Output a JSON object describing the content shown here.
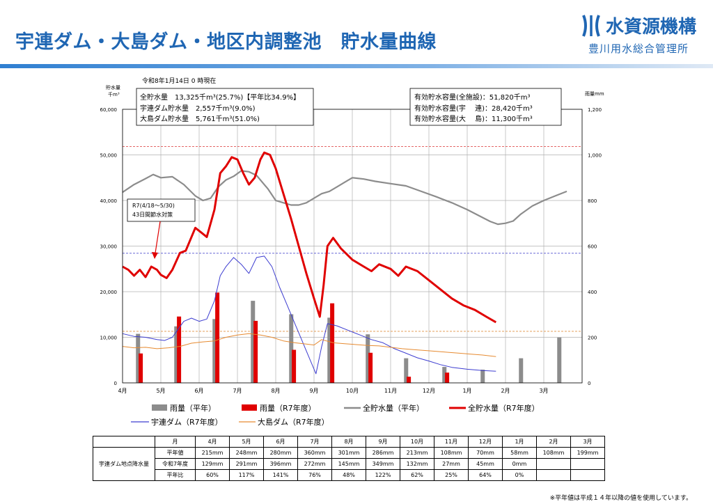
{
  "header": {
    "title": "宇連ダム・大島ダム・地区内調整池　貯水量曲線",
    "org_name": "水資源機構",
    "org_sub": "豊川用水総合管理所"
  },
  "chart_data": {
    "type": "line",
    "date_label": "令和8年1月14日 0 時現在",
    "ylabel_left": "貯水量",
    "ylabel_left_unit": "千m³",
    "ylabel_right": "雨量mm",
    "ylim_left": [
      0,
      60000
    ],
    "ylim_right": [
      0,
      1200
    ],
    "yticks_left": [
      "0",
      "10,000",
      "20,000",
      "30,000",
      "40,000",
      "50,000",
      "60,000"
    ],
    "yticks_right": [
      "0",
      "200",
      "400",
      "600",
      "800",
      "1,000",
      "1,200"
    ],
    "months": [
      "4月",
      "5月",
      "6月",
      "7月",
      "8月",
      "9月",
      "10月",
      "11月",
      "12月",
      "1月",
      "2月",
      "3月"
    ],
    "info_left": [
      "全貯水量　13,325千m³(25.7%)【平年比34.9%】",
      "宇連ダム貯水量　2,557千m³(9.0%)",
      "大島ダム貯水量　5,761千m³(51.0%)"
    ],
    "info_right": [
      "有効貯水容量(全施設)：51,820千m³",
      "有効貯水容量(宇　 連)：28,420千m³",
      "有効貯水容量(大　 島)：11,300千m³"
    ],
    "annotation": [
      "R7(4/18～5/30)",
      "43日間節水対策"
    ],
    "reference_lines": [
      {
        "value": 51820,
        "color": "#e05050"
      },
      {
        "value": 28420,
        "color": "#5050d0"
      },
      {
        "value": 11300,
        "color": "#e09040"
      }
    ],
    "rain_normal": [
      215,
      248,
      280,
      360,
      301,
      286,
      213,
      108,
      70,
      58,
      108,
      199
    ],
    "rain_r7": [
      129,
      291,
      396,
      272,
      145,
      349,
      132,
      27,
      45,
      0
    ],
    "series": [
      {
        "name": "全貯水量(平年)",
        "color": "#8c8c8c",
        "points": [
          [
            0,
            41800
          ],
          [
            0.3,
            43500
          ],
          [
            0.6,
            44800
          ],
          [
            0.8,
            45700
          ],
          [
            1.0,
            45000
          ],
          [
            1.3,
            45200
          ],
          [
            1.6,
            43500
          ],
          [
            1.9,
            41000
          ],
          [
            2.1,
            40000
          ],
          [
            2.3,
            40500
          ],
          [
            2.5,
            43000
          ],
          [
            2.7,
            44500
          ],
          [
            2.9,
            45300
          ],
          [
            3.1,
            46500
          ],
          [
            3.3,
            46300
          ],
          [
            3.5,
            45500
          ],
          [
            3.8,
            42500
          ],
          [
            4.0,
            40000
          ],
          [
            4.2,
            39500
          ],
          [
            4.4,
            39000
          ],
          [
            4.6,
            39000
          ],
          [
            4.8,
            39500
          ],
          [
            5.0,
            40500
          ],
          [
            5.2,
            41500
          ],
          [
            5.4,
            42000
          ],
          [
            5.6,
            43000
          ],
          [
            5.8,
            44000
          ],
          [
            6.0,
            45000
          ],
          [
            6.3,
            44700
          ],
          [
            6.6,
            44200
          ],
          [
            7.0,
            43700
          ],
          [
            7.4,
            43200
          ],
          [
            7.8,
            42000
          ],
          [
            8.2,
            40800
          ],
          [
            8.6,
            39500
          ],
          [
            9.0,
            38000
          ],
          [
            9.3,
            36700
          ],
          [
            9.6,
            35400
          ],
          [
            9.8,
            34800
          ],
          [
            10.0,
            35000
          ],
          [
            10.2,
            35500
          ],
          [
            10.4,
            37000
          ],
          [
            10.7,
            38800
          ],
          [
            11.0,
            40000
          ],
          [
            11.3,
            41000
          ],
          [
            11.6,
            42000
          ]
        ]
      },
      {
        "name": "全貯水量(R7年度)",
        "color": "#e00000",
        "points": [
          [
            0,
            25500
          ],
          [
            0.15,
            24800
          ],
          [
            0.3,
            23500
          ],
          [
            0.45,
            24800
          ],
          [
            0.6,
            23200
          ],
          [
            0.75,
            25500
          ],
          [
            0.9,
            24800
          ],
          [
            1.0,
            23700
          ],
          [
            1.15,
            23000
          ],
          [
            1.3,
            24800
          ],
          [
            1.5,
            28500
          ],
          [
            1.65,
            29000
          ],
          [
            1.75,
            31000
          ],
          [
            1.9,
            34000
          ],
          [
            2.05,
            33000
          ],
          [
            2.2,
            32000
          ],
          [
            2.4,
            38000
          ],
          [
            2.55,
            46000
          ],
          [
            2.7,
            47500
          ],
          [
            2.85,
            49500
          ],
          [
            3.0,
            49000
          ],
          [
            3.15,
            46000
          ],
          [
            3.3,
            43500
          ],
          [
            3.45,
            45000
          ],
          [
            3.6,
            49000
          ],
          [
            3.7,
            50500
          ],
          [
            3.85,
            50000
          ],
          [
            4.0,
            47000
          ],
          [
            4.2,
            41500
          ],
          [
            4.4,
            36000
          ],
          [
            4.6,
            30000
          ],
          [
            4.8,
            24000
          ],
          [
            5.0,
            18500
          ],
          [
            5.15,
            14500
          ],
          [
            5.25,
            21500
          ],
          [
            5.35,
            30000
          ],
          [
            5.5,
            31800
          ],
          [
            5.7,
            29500
          ],
          [
            6.0,
            27000
          ],
          [
            6.3,
            25500
          ],
          [
            6.5,
            24500
          ],
          [
            6.7,
            26000
          ],
          [
            7.0,
            25000
          ],
          [
            7.2,
            23500
          ],
          [
            7.4,
            25500
          ],
          [
            7.7,
            24500
          ],
          [
            8.0,
            22500
          ],
          [
            8.3,
            20500
          ],
          [
            8.6,
            18500
          ],
          [
            8.9,
            17000
          ],
          [
            9.2,
            16000
          ],
          [
            9.5,
            14500
          ],
          [
            9.75,
            13300
          ]
        ]
      },
      {
        "name": "宇連ダム(R7年度)",
        "color": "#3c3cd0",
        "points": [
          [
            0,
            10800
          ],
          [
            0.3,
            10200
          ],
          [
            0.6,
            10000
          ],
          [
            0.9,
            9500
          ],
          [
            1.1,
            9300
          ],
          [
            1.3,
            10000
          ],
          [
            1.6,
            13500
          ],
          [
            1.8,
            14200
          ],
          [
            2.0,
            13500
          ],
          [
            2.2,
            14000
          ],
          [
            2.4,
            18000
          ],
          [
            2.55,
            23500
          ],
          [
            2.7,
            25500
          ],
          [
            2.9,
            27500
          ],
          [
            3.1,
            26000
          ],
          [
            3.3,
            24000
          ],
          [
            3.5,
            27500
          ],
          [
            3.7,
            27800
          ],
          [
            3.9,
            25500
          ],
          [
            4.1,
            21000
          ],
          [
            4.3,
            17000
          ],
          [
            4.5,
            13000
          ],
          [
            4.7,
            9000
          ],
          [
            4.9,
            5000
          ],
          [
            5.05,
            2000
          ],
          [
            5.2,
            8000
          ],
          [
            5.35,
            13000
          ],
          [
            5.6,
            12500
          ],
          [
            5.9,
            11500
          ],
          [
            6.2,
            10500
          ],
          [
            6.5,
            9500
          ],
          [
            6.8,
            8800
          ],
          [
            7.1,
            7500
          ],
          [
            7.4,
            6500
          ],
          [
            7.7,
            5500
          ],
          [
            8.0,
            4800
          ],
          [
            8.3,
            4000
          ],
          [
            8.6,
            3400
          ],
          [
            9.0,
            3000
          ],
          [
            9.4,
            2700
          ],
          [
            9.75,
            2557
          ]
        ]
      },
      {
        "name": "大島ダム(R7年度)",
        "color": "#e68a30",
        "points": [
          [
            0,
            8000
          ],
          [
            0.3,
            7700
          ],
          [
            0.6,
            7800
          ],
          [
            0.9,
            7500
          ],
          [
            1.2,
            7700
          ],
          [
            1.5,
            8000
          ],
          [
            1.8,
            8700
          ],
          [
            2.1,
            9000
          ],
          [
            2.4,
            9200
          ],
          [
            2.7,
            10000
          ],
          [
            3.0,
            10500
          ],
          [
            3.3,
            10800
          ],
          [
            3.6,
            10500
          ],
          [
            3.9,
            10000
          ],
          [
            4.2,
            9200
          ],
          [
            4.5,
            8800
          ],
          [
            4.8,
            8500
          ],
          [
            5.0,
            8300
          ],
          [
            5.2,
            9500
          ],
          [
            5.5,
            8800
          ],
          [
            5.8,
            8600
          ],
          [
            6.1,
            8400
          ],
          [
            6.4,
            8200
          ],
          [
            6.7,
            8100
          ],
          [
            7.0,
            7800
          ],
          [
            7.3,
            7500
          ],
          [
            7.6,
            7300
          ],
          [
            7.9,
            7100
          ],
          [
            8.2,
            6900
          ],
          [
            8.5,
            6700
          ],
          [
            8.8,
            6500
          ],
          [
            9.1,
            6300
          ],
          [
            9.4,
            6100
          ],
          [
            9.75,
            5761
          ]
        ]
      }
    ]
  },
  "legend": {
    "rain_normal": "雨量（平年）",
    "rain_r7": "雨量（R7年度）",
    "total_normal": "全貯水量（平年）",
    "total_r7": "全貯水量（R7年度）",
    "ure": "宇連ダム（R7年度）",
    "oshima": "大島ダム（R7年度）"
  },
  "table": {
    "row_title": "宇連ダム地点降水量",
    "month_header": "月",
    "months": [
      "4月",
      "5月",
      "6月",
      "7月",
      "8月",
      "9月",
      "10月",
      "11月",
      "12月",
      "1月",
      "2月",
      "3月"
    ],
    "rows": [
      {
        "label": "平年値",
        "values": [
          "215mm",
          "248mm",
          "280mm",
          "360mm",
          "301mm",
          "286mm",
          "213mm",
          "108mm",
          "70mm",
          "58mm",
          "108mm",
          "199mm"
        ]
      },
      {
        "label": "令和7年度",
        "values": [
          "129mm",
          "291mm",
          "396mm",
          "272mm",
          "145mm",
          "349mm",
          "132mm",
          "27mm",
          "45mm",
          "0mm",
          "",
          ""
        ]
      },
      {
        "label": "平年比",
        "values": [
          "60%",
          "117%",
          "141%",
          "76%",
          "48%",
          "122%",
          "62%",
          "25%",
          "64%",
          "0%",
          "",
          ""
        ]
      }
    ]
  },
  "footnote": "※平年値は平成１４年以降の値を使用しています。"
}
